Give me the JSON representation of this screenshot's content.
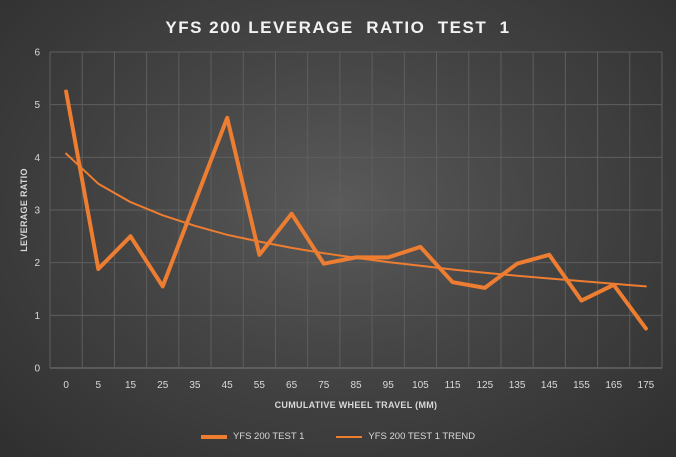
{
  "chart_data": {
    "type": "line",
    "title": "YFS 200 LEVERAGE  RATIO  TEST  1",
    "xlabel": "CUMULATIVE  WHEEL TRAVEL (MM)",
    "ylabel": "LEVERAGE RATIO",
    "categories": [
      "0",
      "5",
      "15",
      "25",
      "35",
      "45",
      "55",
      "65",
      "75",
      "85",
      "95",
      "105",
      "115",
      "125",
      "135",
      "145",
      "155",
      "165",
      "175"
    ],
    "ylim": [
      0,
      6
    ],
    "yticks": [
      0,
      1,
      2,
      3,
      4,
      5,
      6
    ],
    "grid": true,
    "legend_position": "bottom",
    "series": [
      {
        "name": "YFS 200 TEST 1",
        "color": "#ed7d31",
        "style": "thick",
        "values": [
          5.25,
          1.88,
          2.5,
          1.55,
          3.15,
          4.75,
          2.15,
          2.93,
          1.98,
          2.1,
          2.1,
          2.3,
          1.63,
          1.52,
          1.98,
          2.15,
          1.28,
          1.58,
          0.75
        ]
      },
      {
        "name": "YFS 200 TEST 1 TREND",
        "color": "#ed7d31",
        "style": "thin",
        "values": [
          4.07,
          3.5,
          3.15,
          2.9,
          2.7,
          2.53,
          2.4,
          2.28,
          2.18,
          2.09,
          2.01,
          1.94,
          1.87,
          1.81,
          1.75,
          1.7,
          1.65,
          1.6,
          1.55
        ]
      }
    ]
  }
}
